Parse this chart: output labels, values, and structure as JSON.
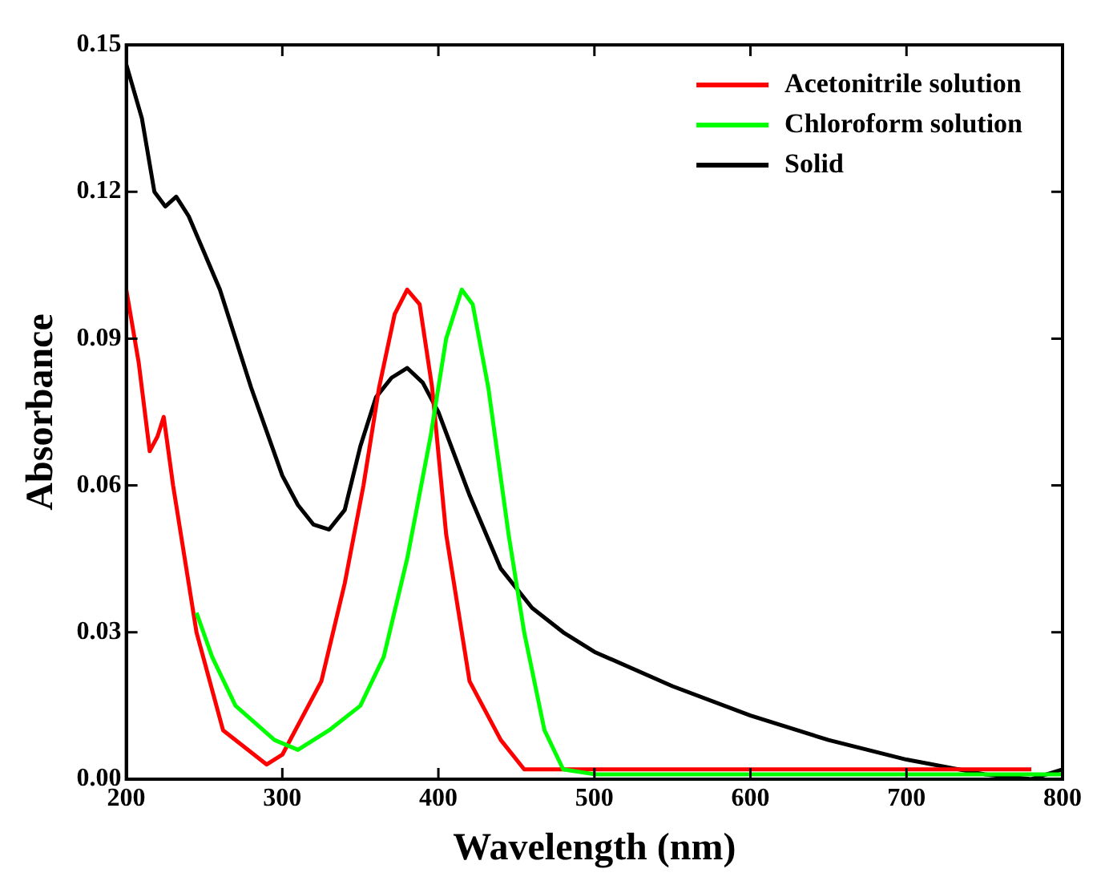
{
  "chart_data": {
    "type": "line",
    "xlabel": "Wavelength (nm)",
    "ylabel": "Absorbance",
    "xlim": [
      200,
      800
    ],
    "xticks": [
      200,
      300,
      400,
      500,
      600,
      700,
      800
    ],
    "ylim": [
      0,
      0.15
    ],
    "yticks": [
      {
        "value": 0,
        "label": "0.00"
      },
      {
        "value": 0.03,
        "label": "0.03"
      },
      {
        "value": 0.06,
        "label": "0.06"
      },
      {
        "value": 0.09,
        "label": "0.09"
      },
      {
        "value": 0.12,
        "label": "0.12"
      },
      {
        "value": 0.15,
        "label": "0.15"
      }
    ],
    "legend": "top right",
    "grid": false,
    "marker": "none",
    "line_style": "solid",
    "series": [
      {
        "name": "Acetonitrile solution",
        "color": "#ff0000",
        "x": [
          200,
          208,
          215,
          220,
          224,
          230,
          245,
          262,
          290,
          300,
          325,
          340,
          352,
          362,
          372,
          380,
          388,
          396,
          405,
          420,
          440,
          455,
          470,
          550,
          650,
          780
        ],
        "values": [
          0.1,
          0.085,
          0.067,
          0.07,
          0.074,
          0.06,
          0.03,
          0.01,
          0.003,
          0.005,
          0.02,
          0.04,
          0.06,
          0.08,
          0.095,
          0.1,
          0.097,
          0.08,
          0.05,
          0.02,
          0.008,
          0.002,
          0.002,
          0.002,
          0.002,
          0.002
        ]
      },
      {
        "name": "Chloroform solution",
        "color": "#00ff00",
        "x": [
          245,
          255,
          270,
          295,
          310,
          330,
          350,
          365,
          380,
          395,
          405,
          415,
          422,
          432,
          445,
          455,
          468,
          480,
          500,
          600,
          700,
          800
        ],
        "values": [
          0.034,
          0.025,
          0.015,
          0.008,
          0.006,
          0.01,
          0.015,
          0.025,
          0.045,
          0.07,
          0.09,
          0.1,
          0.097,
          0.08,
          0.05,
          0.03,
          0.01,
          0.002,
          0.001,
          0.001,
          0.001,
          0.001
        ]
      },
      {
        "name": "Solid",
        "color": "#000000",
        "x": [
          200,
          210,
          218,
          225,
          232,
          240,
          260,
          280,
          300,
          310,
          320,
          330,
          340,
          350,
          360,
          370,
          380,
          390,
          400,
          420,
          440,
          460,
          480,
          500,
          550,
          600,
          650,
          700,
          750,
          780,
          800
        ],
        "values": [
          0.146,
          0.135,
          0.12,
          0.117,
          0.119,
          0.115,
          0.1,
          0.08,
          0.062,
          0.056,
          0.052,
          0.051,
          0.055,
          0.068,
          0.078,
          0.082,
          0.084,
          0.081,
          0.075,
          0.058,
          0.043,
          0.035,
          0.03,
          0.026,
          0.019,
          0.013,
          0.008,
          0.004,
          0.001,
          0,
          0.002
        ]
      }
    ]
  }
}
